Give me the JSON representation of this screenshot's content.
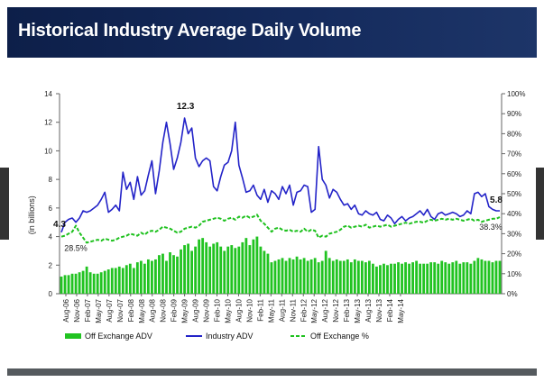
{
  "header": {
    "title": "Historical Industry Average Daily Volume"
  },
  "colors": {
    "header_bg": "#0d1f49",
    "adv_bar": "#21c321",
    "industry_line": "#2323c8",
    "pct_line": "#1fc11f"
  },
  "chart_data": {
    "type": "bar",
    "title": "Historical Industry Average Daily Volume",
    "ylabel": "(in billions)",
    "xlabel": "",
    "ylim": [
      0,
      14
    ],
    "y2lim": [
      0,
      100
    ],
    "yticks": [
      "0",
      "2",
      "4",
      "6",
      "8",
      "10",
      "12",
      "14"
    ],
    "y2ticks": [
      "0%",
      "10%",
      "20%",
      "30%",
      "40%",
      "50%",
      "60%",
      "70%",
      "80%",
      "90%",
      "100%"
    ],
    "x_tick_labels": [
      "Aug-06",
      "Nov-06",
      "Feb-07",
      "May-07",
      "Aug-07",
      "Nov-07",
      "Feb-08",
      "May-08",
      "Aug-08",
      "Nov-08",
      "Feb-09",
      "May-09",
      "Aug-09",
      "Nov-09",
      "Feb-10",
      "May-10",
      "Aug-10",
      "Nov-10",
      "Feb-11",
      "May-11",
      "Aug-11",
      "Nov-11",
      "Feb-12",
      "May-12",
      "Aug-12",
      "Nov-12",
      "Feb-13",
      "May-13",
      "Aug-13",
      "Nov-13",
      "Feb-14",
      "May-14"
    ],
    "legend": [
      "Off Exchange ADV",
      "Industry ADV",
      "Off Exchange %"
    ],
    "series": [
      {
        "name": "Off Exchange ADV",
        "type": "bar",
        "axis": "left",
        "values": [
          1.2,
          1.3,
          1.3,
          1.4,
          1.4,
          1.5,
          1.6,
          1.9,
          1.5,
          1.4,
          1.4,
          1.5,
          1.6,
          1.7,
          1.8,
          1.8,
          1.9,
          1.8,
          2.0,
          2.1,
          1.8,
          2.2,
          2.3,
          2.1,
          2.4,
          2.3,
          2.4,
          2.7,
          2.8,
          2.3,
          2.9,
          2.7,
          2.6,
          3.1,
          3.4,
          3.5,
          3.0,
          3.3,
          3.8,
          3.9,
          3.6,
          3.3,
          3.5,
          3.6,
          3.3,
          3.0,
          3.3,
          3.4,
          3.2,
          3.3,
          3.6,
          3.9,
          3.4,
          3.8,
          4.0,
          3.3,
          3.0,
          2.8,
          2.2,
          2.3,
          2.4,
          2.5,
          2.3,
          2.5,
          2.4,
          2.6,
          2.4,
          2.5,
          2.3,
          2.4,
          2.5,
          2.2,
          2.3,
          3.0,
          2.5,
          2.3,
          2.4,
          2.3,
          2.3,
          2.4,
          2.2,
          2.4,
          2.3,
          2.3,
          2.2,
          2.3,
          2.1,
          1.9,
          2.0,
          2.1,
          2.0,
          2.1,
          2.1,
          2.2,
          2.1,
          2.2,
          2.1,
          2.2,
          2.3,
          2.1,
          2.1,
          2.1,
          2.2,
          2.2,
          2.1,
          2.3,
          2.2,
          2.1,
          2.2,
          2.3,
          2.1,
          2.2,
          2.2,
          2.1,
          2.3,
          2.5,
          2.4,
          2.3,
          2.3,
          2.2,
          2.3,
          2.3
        ]
      },
      {
        "name": "Industry ADV",
        "type": "line",
        "axis": "left",
        "values": [
          4.3,
          5.0,
          5.2,
          5.3,
          5.0,
          5.3,
          5.8,
          5.7,
          5.8,
          6.0,
          6.2,
          6.6,
          7.1,
          5.7,
          5.9,
          6.2,
          5.8,
          8.5,
          7.3,
          7.8,
          6.6,
          8.2,
          6.9,
          7.2,
          8.3,
          9.3,
          7.0,
          8.6,
          10.6,
          12.0,
          10.5,
          8.7,
          9.5,
          10.6,
          12.3,
          11.2,
          11.6,
          9.5,
          8.9,
          9.3,
          9.5,
          9.3,
          7.5,
          7.2,
          8.2,
          9.0,
          9.2,
          10.0,
          12.0,
          9.0,
          8.1,
          7.1,
          7.2,
          7.6,
          6.9,
          6.6,
          7.3,
          6.4,
          7.2,
          7.0,
          6.6,
          7.5,
          7.0,
          7.6,
          6.2,
          7.1,
          7.2,
          7.6,
          7.5,
          5.7,
          5.9,
          10.3,
          8.0,
          7.6,
          6.7,
          7.3,
          7.1,
          6.6,
          6.2,
          6.3,
          5.9,
          6.2,
          5.6,
          5.5,
          5.8,
          5.6,
          5.5,
          5.7,
          5.2,
          5.1,
          5.5,
          5.3,
          4.9,
          5.2,
          5.4,
          5.1,
          5.3,
          5.4,
          5.6,
          5.8,
          5.5,
          5.9,
          5.4,
          5.2,
          5.6,
          5.7,
          5.5,
          5.6,
          5.7,
          5.6,
          5.4,
          5.5,
          5.8,
          5.6,
          7.0,
          7.1,
          6.8,
          7.0,
          6.1,
          5.9,
          5.8,
          5.8
        ]
      },
      {
        "name": "Off Exchange %",
        "type": "line",
        "axis": "right",
        "dash": true,
        "values": [
          28.5,
          29.0,
          30.0,
          31.0,
          34.0,
          30.5,
          28.0,
          25.5,
          26.0,
          26.5,
          27.0,
          26.5,
          27.5,
          27.0,
          26.5,
          27.0,
          28.0,
          28.5,
          29.0,
          30.0,
          29.5,
          29.0,
          30.5,
          29.5,
          31.0,
          31.5,
          31.0,
          32.0,
          33.5,
          33.0,
          32.5,
          31.5,
          30.5,
          31.0,
          32.5,
          33.0,
          33.5,
          33.0,
          34.0,
          36.0,
          36.5,
          37.0,
          37.5,
          38.0,
          37.5,
          36.5,
          37.5,
          38.0,
          37.0,
          38.5,
          38.0,
          39.0,
          38.0,
          38.5,
          39.5,
          36.5,
          35.0,
          33.0,
          31.0,
          32.5,
          33.0,
          32.0,
          31.5,
          32.0,
          31.0,
          31.5,
          31.0,
          32.5,
          31.0,
          32.0,
          31.5,
          28.0,
          29.0,
          28.5,
          30.0,
          30.5,
          31.0,
          32.0,
          33.5,
          34.0,
          33.0,
          33.5,
          34.0,
          33.5,
          34.5,
          33.0,
          33.5,
          34.0,
          33.5,
          34.0,
          34.5,
          33.5,
          34.0,
          34.5,
          35.0,
          35.5,
          35.0,
          35.5,
          36.0,
          36.0,
          35.5,
          36.5,
          37.0,
          36.5,
          37.0,
          37.5,
          37.0,
          37.5,
          37.0,
          37.5,
          37.0,
          36.5,
          37.0,
          37.5,
          36.5,
          37.0,
          36.0,
          36.5,
          37.0,
          37.5,
          37.5,
          38.3
        ]
      }
    ],
    "annotations": [
      {
        "text": "4.3",
        "series": "Industry ADV",
        "index": 0
      },
      {
        "text": "12.3",
        "series": "Industry ADV",
        "index": 34
      },
      {
        "text": "5.8",
        "series": "Industry ADV",
        "index": 121
      },
      {
        "text": "28.5%",
        "series": "Off Exchange %",
        "index": 0
      },
      {
        "text": "38.3%",
        "series": "Off Exchange %",
        "index": 121
      }
    ]
  }
}
